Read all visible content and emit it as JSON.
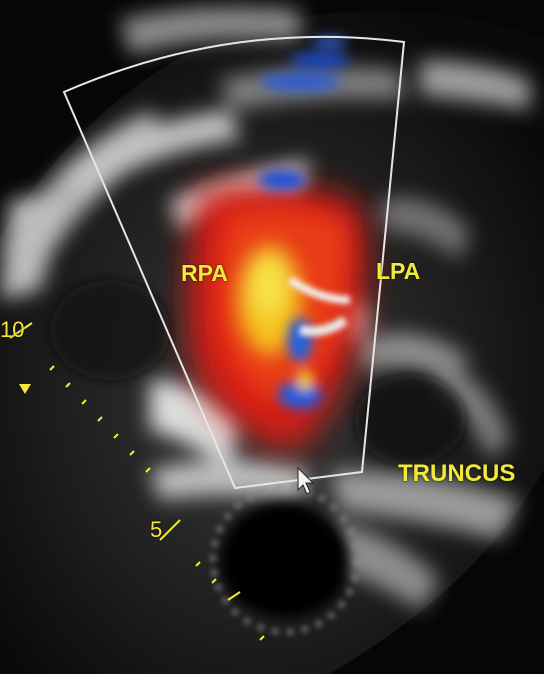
{
  "labels": {
    "rpa": "RPA",
    "lpa": "LPA",
    "truncus": "TRUNCUS"
  },
  "depth_scale": {
    "mark_10": "10",
    "mark_5": "5"
  },
  "colors": {
    "annotation": "#f2ea3a",
    "sector_outline": "#e6e6e6",
    "doppler_red": "#e0261a",
    "doppler_yellow": "#f5d21e",
    "doppler_blue": "#1e5be0"
  },
  "icons": {
    "cursor": "mouse-pointer-icon",
    "focus_marker": "triangle-marker-icon"
  }
}
